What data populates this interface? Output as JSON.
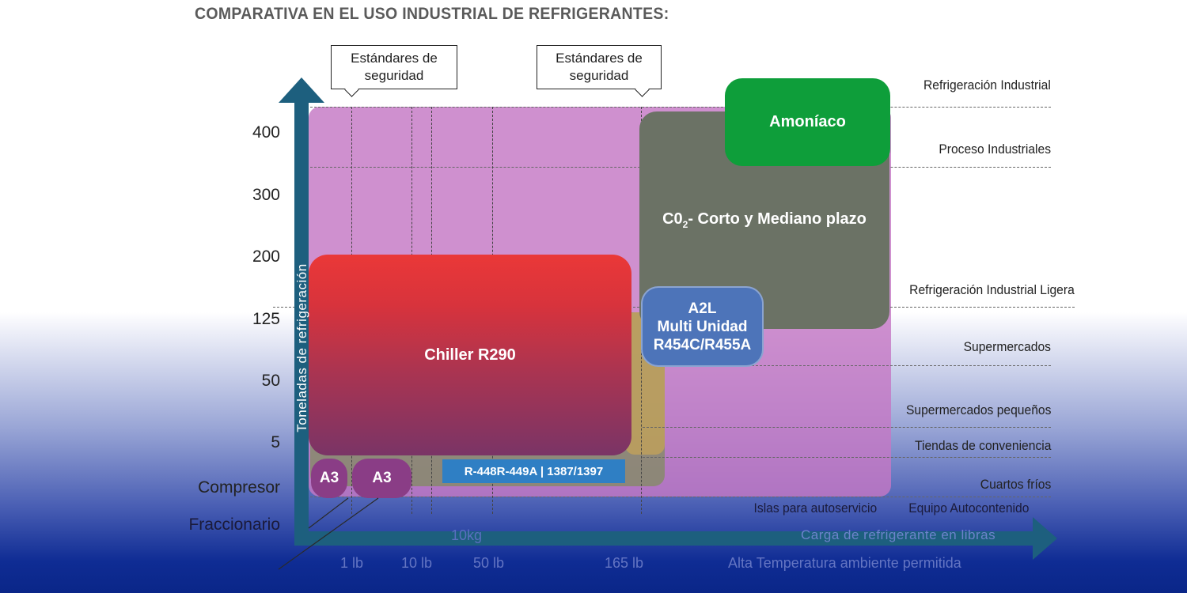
{
  "title": "COMPARATIVA EN EL USO INDUSTRIAL DE REFRIGERANTES:",
  "callouts": [
    "Estándares de seguridad",
    "Estándares de seguridad"
  ],
  "y_axis": {
    "label": "Toneladas de refrigeración",
    "ticks": [
      "400",
      "300",
      "200",
      "125",
      "50",
      "5",
      "Compresor",
      "Fraccionario"
    ]
  },
  "x_axis": {
    "label": "Carga de refrigerante en libras",
    "marker_top": "10kg",
    "ticks": [
      "1 lb",
      "10 lb",
      "50 lb",
      "165 lb"
    ],
    "footer_note": "Alta Temperatura ambiente permitida"
  },
  "categories": [
    "Refrigeración Industrial",
    "Proceso Industriales",
    "Refrigeración Industrial Ligera",
    "Supermercados",
    "Supermercados pequeños",
    "Tiendas de conveniencia",
    "Cuartos fríos"
  ],
  "bottom_labels": [
    "Islas para autoservicio",
    "Equipo Autocontenido"
  ],
  "regions": {
    "amoniaco": "Amoníaco",
    "co2": "C0",
    "co2_sub": "2",
    "co2_rest": "- Corto y Mediano plazo",
    "chiller": "Chiller R290",
    "a2l_line1": "A2L",
    "a2l_line2": "Multi Unidad",
    "a2l_line3": "R454C/R455A",
    "a3": "A3",
    "hfo": "R-448R-449A | 1387/1397"
  },
  "colors": {
    "purple": "#c478c4",
    "co2": "#6b7265",
    "amoniaco": "#0e9e3a",
    "chiller": "#e83838",
    "a2l": "#4d74b9",
    "a3": "#8a3d86",
    "hfo": "#2f7fc4",
    "axis": "#1d5f7e"
  }
}
